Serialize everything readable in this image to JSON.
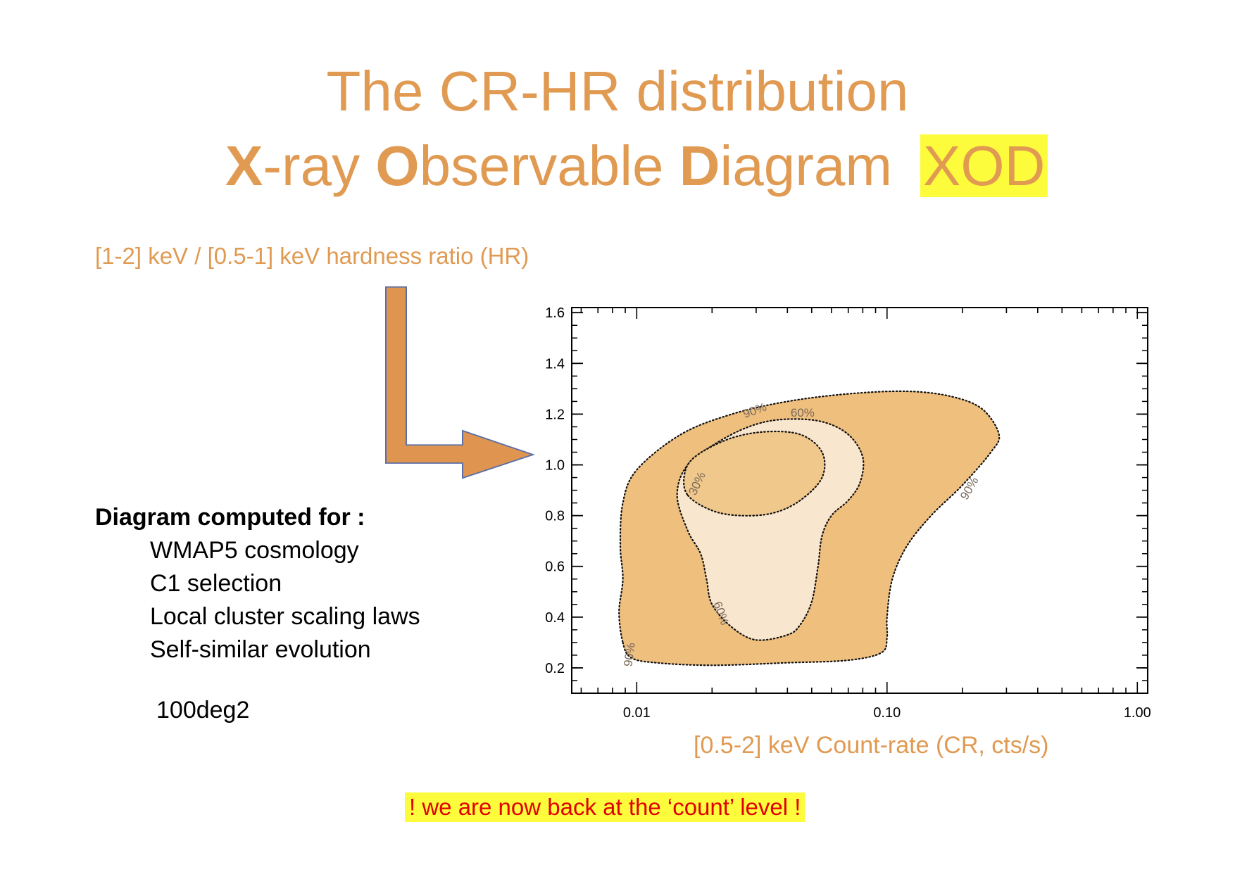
{
  "title": {
    "line1": "The CR-HR distribution",
    "line2": [
      {
        "bold": "X",
        "rest": "-ray "
      },
      {
        "bold": "O",
        "rest": "bservable "
      },
      {
        "bold": "D",
        "rest": "iagram"
      }
    ],
    "acronym": "XOD"
  },
  "hr_label": "[1-2] keV / [0.5-1] keV hardness ratio (HR)",
  "info": {
    "heading": "Diagram computed for :",
    "items": [
      "WMAP5 cosmology",
      "C1 selection",
      "Local cluster scaling laws",
      "Self-similar evolution"
    ],
    "area": "100deg2"
  },
  "note": "! we are now back at the ‘count’ level !",
  "colors": {
    "accent": "#e09a52",
    "fill_outer": "#efbf7e",
    "fill_mid": "#f9e6cf",
    "fill_inner": "#f1c88b",
    "highlight": "#fdfc3c",
    "note_text": "#e00000"
  },
  "chart_data": {
    "type": "contour",
    "title": "",
    "xlabel": "[0.5-2] keV Count-rate (CR, cts/s)",
    "ylabel": "",
    "xscale": "log",
    "xlim": [
      0.0055,
      1.1
    ],
    "ylim": [
      0.1,
      1.62
    ],
    "xticks": [
      {
        "v": 0.01,
        "label": "0.01"
      },
      {
        "v": 0.1,
        "label": "0.10"
      },
      {
        "v": 1.0,
        "label": "1.00"
      }
    ],
    "yticks": [
      {
        "v": 0.2,
        "label": "0.2"
      },
      {
        "v": 0.4,
        "label": "0.4"
      },
      {
        "v": 0.6,
        "label": "0.6"
      },
      {
        "v": 0.8,
        "label": "0.8"
      },
      {
        "v": 1.0,
        "label": "1.0"
      },
      {
        "v": 1.2,
        "label": "1.2"
      },
      {
        "v": 1.4,
        "label": "1.4"
      },
      {
        "v": 1.6,
        "label": "1.6"
      }
    ],
    "series": [
      {
        "name": "90%",
        "fill": "#efbf7e",
        "points": [
          [
            0.0088,
            0.3
          ],
          [
            0.0095,
            0.24
          ],
          [
            0.012,
            0.22
          ],
          [
            0.02,
            0.21
          ],
          [
            0.04,
            0.22
          ],
          [
            0.07,
            0.23
          ],
          [
            0.095,
            0.26
          ],
          [
            0.1,
            0.32
          ],
          [
            0.1,
            0.4
          ],
          [
            0.105,
            0.55
          ],
          [
            0.12,
            0.68
          ],
          [
            0.15,
            0.8
          ],
          [
            0.2,
            0.92
          ],
          [
            0.26,
            1.05
          ],
          [
            0.28,
            1.12
          ],
          [
            0.24,
            1.22
          ],
          [
            0.18,
            1.27
          ],
          [
            0.12,
            1.29
          ],
          [
            0.07,
            1.28
          ],
          [
            0.04,
            1.25
          ],
          [
            0.024,
            1.2
          ],
          [
            0.015,
            1.12
          ],
          [
            0.01,
            0.98
          ],
          [
            0.0088,
            0.85
          ],
          [
            0.0086,
            0.68
          ],
          [
            0.0088,
            0.55
          ],
          [
            0.0085,
            0.42
          ]
        ],
        "label_pos": [
          [
            0.0097,
            0.25,
            -82
          ],
          [
            0.03,
            1.2,
            -20
          ],
          [
            0.22,
            0.9,
            -60
          ]
        ]
      },
      {
        "name": "60%",
        "fill": "#f9e6cf",
        "points": [
          [
            0.03,
            0.31
          ],
          [
            0.04,
            0.33
          ],
          [
            0.045,
            0.37
          ],
          [
            0.05,
            0.46
          ],
          [
            0.053,
            0.6
          ],
          [
            0.055,
            0.72
          ],
          [
            0.06,
            0.8
          ],
          [
            0.07,
            0.86
          ],
          [
            0.078,
            0.93
          ],
          [
            0.08,
            1.03
          ],
          [
            0.07,
            1.12
          ],
          [
            0.055,
            1.17
          ],
          [
            0.04,
            1.18
          ],
          [
            0.03,
            1.16
          ],
          [
            0.022,
            1.1
          ],
          [
            0.016,
            1.0
          ],
          [
            0.0145,
            0.88
          ],
          [
            0.016,
            0.74
          ],
          [
            0.018,
            0.65
          ],
          [
            0.019,
            0.55
          ],
          [
            0.02,
            0.45
          ],
          [
            0.024,
            0.36
          ]
        ],
        "label_pos": [
          [
            0.021,
            0.41,
            70
          ],
          [
            0.046,
            1.19,
            0
          ]
        ]
      },
      {
        "name": "30%",
        "fill": "#f1c88b",
        "points": [
          [
            0.016,
            0.88
          ],
          [
            0.02,
            0.82
          ],
          [
            0.026,
            0.8
          ],
          [
            0.035,
            0.81
          ],
          [
            0.045,
            0.86
          ],
          [
            0.055,
            0.95
          ],
          [
            0.055,
            1.05
          ],
          [
            0.045,
            1.12
          ],
          [
            0.032,
            1.13
          ],
          [
            0.023,
            1.1
          ],
          [
            0.017,
            1.03
          ],
          [
            0.0155,
            0.96
          ]
        ],
        "label_pos": [
          [
            0.018,
            0.92,
            -65
          ]
        ]
      }
    ]
  }
}
